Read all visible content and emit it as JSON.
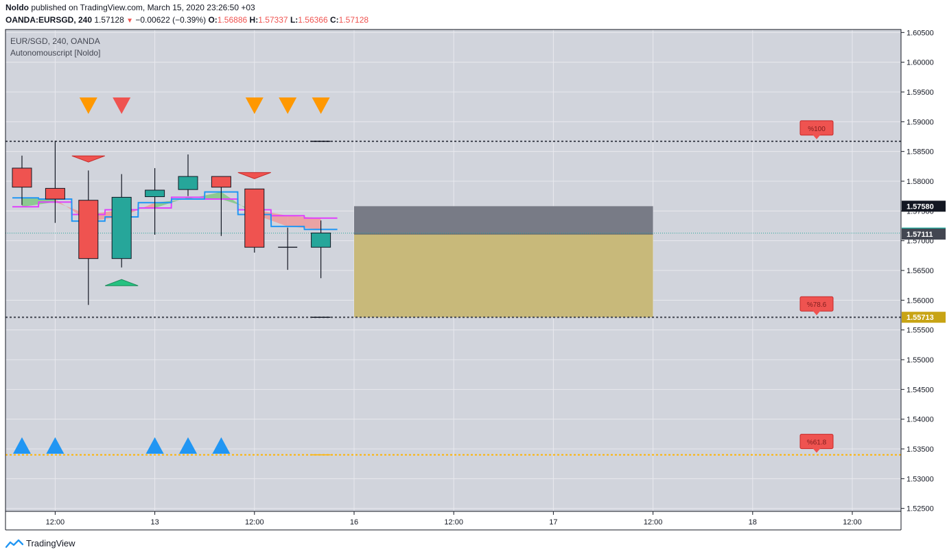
{
  "header": {
    "author": "Noldo",
    "published_text": "published on TradingView.com, March 15, 2020 23:26:50 +03",
    "symbol_line": "OANDA:EURSGD, 240",
    "last": "1.57128",
    "change": "−0.00622 (−0.39%)",
    "o_label": "O:",
    "o": "1.56886",
    "h_label": "H:",
    "h": "1.57337",
    "l_label": "L:",
    "l": "1.56366",
    "c_label": "C:",
    "c": "1.57128"
  },
  "legend": {
    "title": "EUR/SGD, 240, OANDA",
    "indicator": "Autonomouscript [Noldo]"
  },
  "footer": {
    "brand": "TradingView"
  },
  "colors": {
    "up": "#26a69a",
    "down": "#ef5350",
    "grid": "#e8e9ee",
    "bg": "#d1d4dc",
    "blue_line": "#2196f3",
    "magenta_line": "#e040fb",
    "green_fill": "#81c784",
    "red_fill": "#ef9a9a",
    "orange_marker": "#ff9800",
    "red_marker": "#ef5350",
    "blue_marker": "#2196f3",
    "box_dark": "#787b86",
    "box_gold": "#c8b97a"
  },
  "chart_data": {
    "type": "candlestick",
    "y_range": [
      1.5245,
      1.6055
    ],
    "y_ticks": [
      "1.60500",
      "1.60000",
      "1.59500",
      "1.59000",
      "1.58500",
      "1.58000",
      "1.57500",
      "1.57000",
      "1.56500",
      "1.56000",
      "1.55500",
      "1.55000",
      "1.54500",
      "1.54000",
      "1.53500",
      "1.53000",
      "1.52500"
    ],
    "x_ticks": [
      {
        "label": "12:00",
        "bar": 1
      },
      {
        "label": "13",
        "bar": 4
      },
      {
        "label": "12:00",
        "bar": 7
      },
      {
        "label": "16",
        "bar": 10
      },
      {
        "label": "12:00",
        "bar": 13
      },
      {
        "label": "17",
        "bar": 16
      },
      {
        "label": "12:00",
        "bar": 19
      },
      {
        "label": "18",
        "bar": 22
      },
      {
        "label": "12:00",
        "bar": 25
      }
    ],
    "candles": [
      {
        "o": 1.5822,
        "h": 1.5843,
        "l": 1.576,
        "c": 1.579
      },
      {
        "o": 1.5788,
        "h": 1.5868,
        "l": 1.573,
        "c": 1.577
      },
      {
        "o": 1.5768,
        "h": 1.5818,
        "l": 1.5592,
        "c": 1.567
      },
      {
        "o": 1.567,
        "h": 1.5812,
        "l": 1.5655,
        "c": 1.5773
      },
      {
        "o": 1.5774,
        "h": 1.5822,
        "l": 1.571,
        "c": 1.5785
      },
      {
        "o": 1.5786,
        "h": 1.5845,
        "l": 1.5775,
        "c": 1.5808
      },
      {
        "o": 1.5808,
        "h": 1.5808,
        "l": 1.5708,
        "c": 1.579
      },
      {
        "o": 1.5787,
        "h": 1.5787,
        "l": 1.568,
        "c": 1.5689
      },
      {
        "o": 1.5689,
        "h": 1.5722,
        "l": 1.5651,
        "c": 1.5689
      },
      {
        "o": 1.5689,
        "h": 1.5734,
        "l": 1.5637,
        "c": 1.5713
      }
    ],
    "blue_line": [
      1.5772,
      1.577,
      1.5733,
      1.574,
      1.5764,
      1.577,
      1.5782,
      1.5744,
      1.5724,
      1.5719
    ],
    "magenta_line": [
      1.5757,
      1.5765,
      1.5744,
      1.5752,
      1.5755,
      1.5773,
      1.577,
      1.5752,
      1.5742,
      1.5738
    ],
    "levels": [
      {
        "value": 1.5867,
        "style": "dotted-dark",
        "label": "%100"
      },
      {
        "value": 1.55713,
        "style": "dotted-dark",
        "label": "%78.6"
      },
      {
        "value": 1.534,
        "style": "dotted-orange",
        "label": "%61.8"
      },
      {
        "value": 1.57128,
        "style": "dotted-teal"
      }
    ],
    "price_labels": [
      {
        "text": "1.57580",
        "value": 1.5758,
        "color": "#131722"
      },
      {
        "text": "1.57128",
        "value": 1.57128,
        "color": "#26a69a"
      },
      {
        "text": "1.57111",
        "value": 1.57111,
        "color": "#434651"
      },
      {
        "text": "1.55713",
        "value": 1.55713,
        "color": "#c8a415"
      }
    ],
    "position_box": {
      "start_bar": 10,
      "end_bar": 19,
      "top": 1.5758,
      "entry": 1.5711,
      "stop": 1.55713
    },
    "sell_markers": [
      {
        "bar": 2,
        "color": "orange"
      },
      {
        "bar": 3,
        "color": "red"
      },
      {
        "bar": 7,
        "color": "orange"
      },
      {
        "bar": 8,
        "color": "orange"
      },
      {
        "bar": 9,
        "color": "orange"
      }
    ],
    "buy_markers": [
      0,
      1,
      4,
      5,
      6
    ],
    "down_wedges": [
      {
        "bar": 2,
        "value": 1.5838
      },
      {
        "bar": 7,
        "value": 1.581
      }
    ],
    "up_wedges": [
      {
        "bar": 3,
        "value": 1.5629
      }
    ]
  }
}
